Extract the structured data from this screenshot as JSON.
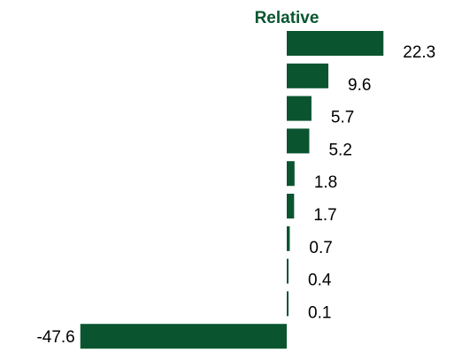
{
  "chart_data": {
    "type": "bar",
    "orientation": "horizontal",
    "title": "Relative",
    "values": [
      22.3,
      9.6,
      5.7,
      5.2,
      1.8,
      1.7,
      0.7,
      0.4,
      0.1,
      -47.6
    ],
    "labels": [
      "22.3",
      "9.6",
      "5.7",
      "5.2",
      "1.8",
      "1.7",
      "0.7",
      "0.4",
      "0.1",
      "-47.6"
    ],
    "grid": false,
    "legend": "none"
  },
  "colors": {
    "bar": "#0a5530",
    "title": "#0a5530"
  }
}
